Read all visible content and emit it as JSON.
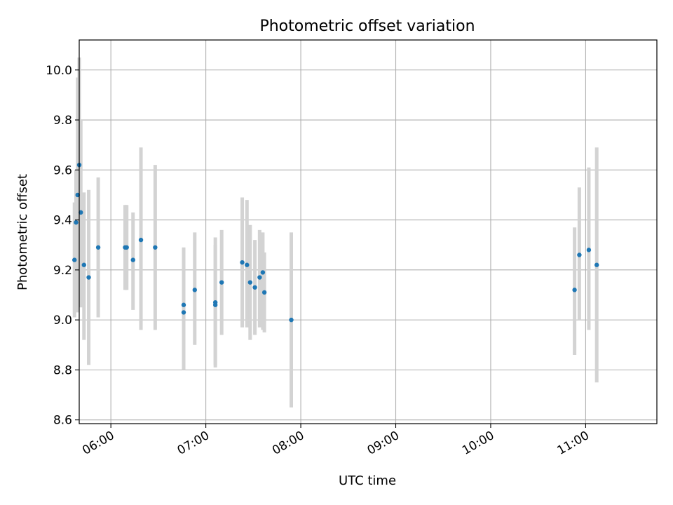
{
  "chart_data": {
    "type": "scatter",
    "title": "Photometric offset variation",
    "xlabel": "UTC time",
    "ylabel": "Photometric offset",
    "xlim": [
      "05:40",
      "11:45"
    ],
    "ylim": [
      8.585,
      10.12
    ],
    "xticks": [
      "06:00",
      "07:00",
      "08:00",
      "09:00",
      "10:00",
      "11:00"
    ],
    "yticks": [
      8.6,
      8.8,
      9.0,
      9.2,
      9.4,
      9.6,
      9.8,
      10.0
    ],
    "ytick_labels": [
      "8.6",
      "8.8",
      "9.0",
      "9.2",
      "9.4",
      "9.6",
      "9.8",
      "10.0"
    ],
    "grid": true,
    "colors": {
      "points": "#1f77b4",
      "errorbars": "#d3d3d3",
      "grid": "#b0b0b0"
    },
    "points": [
      {
        "t": "05:37",
        "y": 9.24,
        "lo": 9.01,
        "hi": 9.47
      },
      {
        "t": "05:38",
        "y": 9.39,
        "lo": 9.18,
        "hi": 9.6
      },
      {
        "t": "05:39",
        "y": 9.5,
        "lo": 9.03,
        "hi": 9.97
      },
      {
        "t": "05:40",
        "y": 9.62,
        "lo": 9.19,
        "hi": 10.05
      },
      {
        "t": "05:41",
        "y": 9.43,
        "lo": 9.05,
        "hi": 9.8
      },
      {
        "t": "05:43",
        "y": 9.22,
        "lo": 8.92,
        "hi": 9.51
      },
      {
        "t": "05:46",
        "y": 9.17,
        "lo": 8.82,
        "hi": 9.52
      },
      {
        "t": "05:52",
        "y": 9.29,
        "lo": 9.01,
        "hi": 9.57
      },
      {
        "t": "06:09",
        "y": 9.29,
        "lo": 9.12,
        "hi": 9.46
      },
      {
        "t": "06:10",
        "y": 9.29,
        "lo": 9.12,
        "hi": 9.46
      },
      {
        "t": "06:14",
        "y": 9.24,
        "lo": 9.04,
        "hi": 9.43
      },
      {
        "t": "06:19",
        "y": 9.32,
        "lo": 8.96,
        "hi": 9.69
      },
      {
        "t": "06:28",
        "y": 9.29,
        "lo": 8.96,
        "hi": 9.62
      },
      {
        "t": "06:46",
        "y": 9.03,
        "lo": 8.8,
        "hi": 9.26
      },
      {
        "t": "06:46",
        "y": 9.06,
        "lo": 8.82,
        "hi": 9.29
      },
      {
        "t": "06:53",
        "y": 9.12,
        "lo": 8.9,
        "hi": 9.35
      },
      {
        "t": "07:06",
        "y": 9.07,
        "lo": 8.82,
        "hi": 9.33
      },
      {
        "t": "07:06",
        "y": 9.06,
        "lo": 8.81,
        "hi": 9.3
      },
      {
        "t": "07:10",
        "y": 9.15,
        "lo": 8.94,
        "hi": 9.36
      },
      {
        "t": "07:23",
        "y": 9.23,
        "lo": 8.97,
        "hi": 9.49
      },
      {
        "t": "07:26",
        "y": 9.22,
        "lo": 8.97,
        "hi": 9.48
      },
      {
        "t": "07:28",
        "y": 9.15,
        "lo": 8.92,
        "hi": 9.38
      },
      {
        "t": "07:31",
        "y": 9.13,
        "lo": 8.94,
        "hi": 9.32
      },
      {
        "t": "07:34",
        "y": 9.17,
        "lo": 8.97,
        "hi": 9.36
      },
      {
        "t": "07:36",
        "y": 9.19,
        "lo": 8.96,
        "hi": 9.35
      },
      {
        "t": "07:37",
        "y": 9.11,
        "lo": 8.95,
        "hi": 9.27
      },
      {
        "t": "07:54",
        "y": 9.0,
        "lo": 8.65,
        "hi": 9.35
      },
      {
        "t": "10:53",
        "y": 9.12,
        "lo": 8.86,
        "hi": 9.37
      },
      {
        "t": "10:56",
        "y": 9.26,
        "lo": 9.0,
        "hi": 9.53
      },
      {
        "t": "11:02",
        "y": 9.28,
        "lo": 8.96,
        "hi": 9.61
      },
      {
        "t": "11:07",
        "y": 9.22,
        "lo": 8.75,
        "hi": 9.69
      }
    ]
  }
}
